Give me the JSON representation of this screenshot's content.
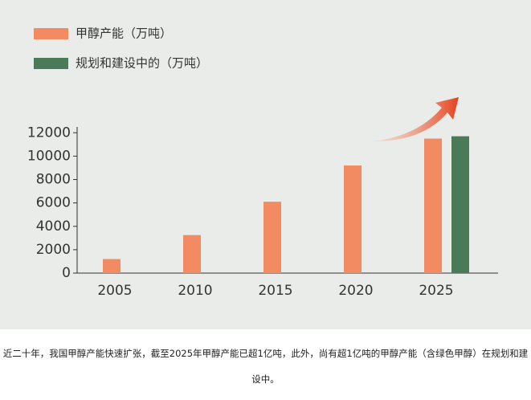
{
  "chart_data": {
    "type": "bar",
    "categories": [
      "2005",
      "2010",
      "2015",
      "2020",
      "2025"
    ],
    "series": [
      {
        "name": "甲醇产能（万吨）",
        "color": "#f28a62",
        "values": [
          1200,
          3250,
          6100,
          9200,
          11500
        ]
      },
      {
        "name": "规划和建设中的（万吨）",
        "color": "#4b7a58",
        "values": [
          null,
          null,
          null,
          null,
          11700
        ]
      }
    ],
    "ylim": [
      0,
      12500
    ],
    "yticks": [
      0,
      2000,
      4000,
      6000,
      8000,
      10000,
      12000
    ]
  },
  "caption": "近二十年，我国甲醇产能快速扩张，截至2025年甲醇产能已超1亿吨，此外，尚有超1亿吨的甲醇产能（含绿色甲醇）在规划和建设中。"
}
